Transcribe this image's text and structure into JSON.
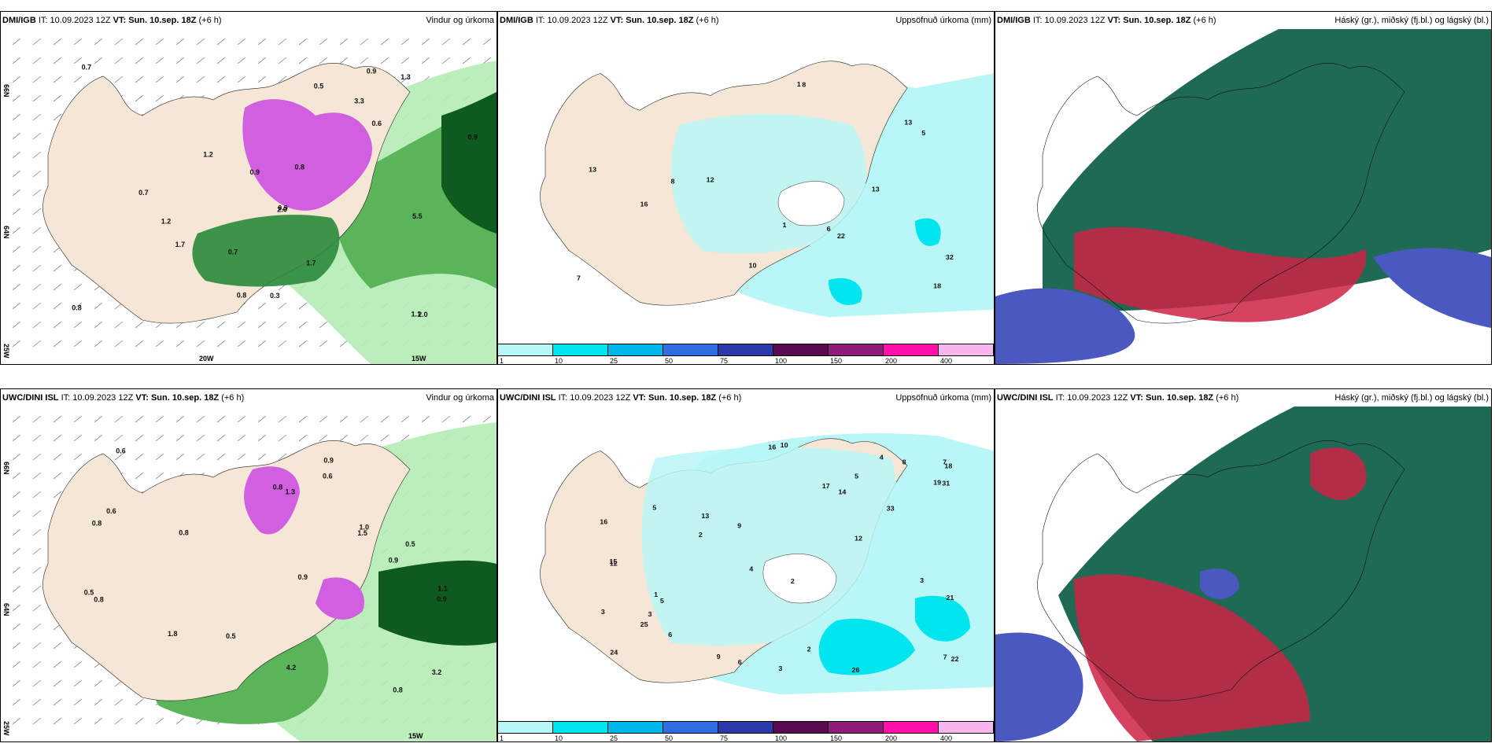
{
  "rows": [
    {
      "source": "DMI/IGB",
      "panels": [
        {
          "right_title": "Vindur og úrkoma",
          "lat_labels": [
            "66N",
            "64N",
            "25W"
          ],
          "lon_labels": [
            "20W",
            "15W"
          ],
          "numbers": [
            "0.7",
            "0.9",
            "0.8",
            "0.9",
            "1.7",
            "1.3",
            "0.6",
            "0.3",
            "0.9",
            "2.0",
            "0.8",
            "1.7",
            "0.5",
            "0.7",
            "1.1",
            "1.2",
            "0.8",
            "1.2",
            "0.9",
            "3.3",
            "2.0",
            "5.5",
            "0.7"
          ]
        },
        {
          "right_title": "Uppsöfnuð úrkoma (mm)",
          "numbers": [
            "13",
            "10",
            "8",
            "8",
            "7",
            "12",
            "5",
            "16",
            "18",
            "6",
            "13",
            "13",
            "22",
            "32",
            "1",
            "1"
          ]
        },
        {
          "right_title": "Háský (gr.), miðský (fj.bl.) og lágský (bl.)"
        }
      ]
    },
    {
      "source": "UWC/DINI ISL",
      "panels": [
        {
          "right_title": "Vindur og úrkoma",
          "lat_labels": [
            "66N",
            "64N",
            "25W"
          ],
          "lon_labels": [
            "15W"
          ],
          "numbers": [
            "0.5",
            "0.9",
            "1.0",
            "0.8",
            "0.9",
            "0.5",
            "0.6",
            "0.8",
            "0.9",
            "1.5",
            "0.6",
            "0.8",
            "3.2",
            "0.9",
            "1.1",
            "0.8",
            "0.6",
            "0.8",
            "0.5",
            "1.8",
            "1.3",
            "4.2"
          ]
        },
        {
          "right_title": "Uppsöfnuð úrkoma (mm)",
          "numbers": [
            "3",
            "2",
            "1",
            "5",
            "4",
            "3",
            "6",
            "5",
            "3",
            "2",
            "7",
            "12",
            "10",
            "9",
            "8",
            "14",
            "16",
            "22",
            "31",
            "17",
            "12",
            "25",
            "24",
            "26",
            "19",
            "18",
            "13",
            "33",
            "21",
            "15",
            "16",
            "6",
            "3",
            "2",
            "9",
            "5",
            "7",
            "4"
          ]
        },
        {
          "right_title": "Háský (gr.), miðský (fj.bl.) og lágský (bl.)"
        }
      ]
    }
  ],
  "header": {
    "it_label": "IT:",
    "it_value": "10.09.2023 12Z",
    "vt_label": "VT:",
    "vt_value": "Sun. 10.sep. 18Z",
    "lead": "(+6 h)"
  },
  "colorbar": {
    "labels": [
      "1",
      "10",
      "25",
      "50",
      "75",
      "100",
      "150",
      "200",
      "400"
    ],
    "colors": [
      "#b8f7f7",
      "#00e5ee",
      "#00b8e8",
      "#2f6ee0",
      "#2a3aa8",
      "#5a0a50",
      "#8e1c78",
      "#ff10a8",
      "#f7b5f0"
    ]
  },
  "colors": {
    "land": "#f5e6d6",
    "light_precip": "#b9f6f6",
    "green_light": "#b5ecb5",
    "green_mid": "#5ab45a",
    "green_dark": "#0f5a1e",
    "magenta": "#d060e0",
    "cloud_high": "#1f6a55",
    "cloud_mid": "#cc2244",
    "cloud_low": "#4a58c0"
  }
}
